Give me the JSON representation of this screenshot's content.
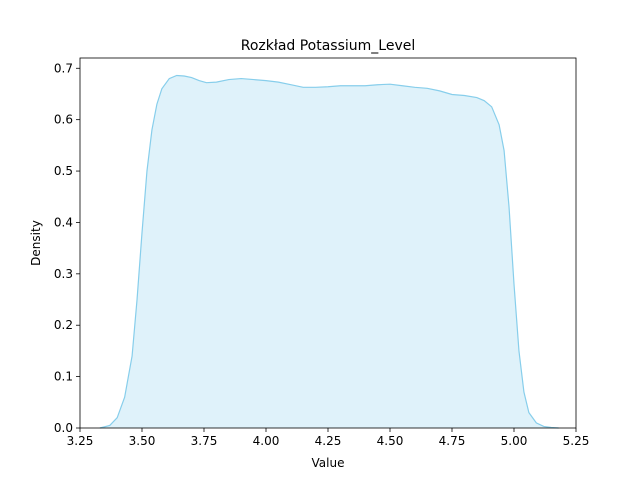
{
  "chart_data": {
    "type": "area",
    "title": "Rozkład Potassium_Level",
    "xlabel": "Value",
    "ylabel": "Density",
    "xlim": [
      3.25,
      5.25
    ],
    "ylim": [
      0.0,
      0.72
    ],
    "xticks": [
      3.25,
      3.5,
      3.75,
      4.0,
      4.25,
      4.5,
      4.75,
      5.0,
      5.25
    ],
    "xtick_labels": [
      "3.25",
      "3.50",
      "3.75",
      "4.00",
      "4.25",
      "4.50",
      "4.75",
      "5.00",
      "5.25"
    ],
    "yticks": [
      0.0,
      0.1,
      0.2,
      0.3,
      0.4,
      0.5,
      0.6,
      0.7
    ],
    "ytick_labels": [
      "0.0",
      "0.1",
      "0.2",
      "0.3",
      "0.4",
      "0.5",
      "0.6",
      "0.7"
    ],
    "grid": false,
    "line_color": "#87ceeb",
    "fill_color": "#87ceeb",
    "fill_opacity": 0.27,
    "series": [
      {
        "x": [
          3.33,
          3.37,
          3.4,
          3.43,
          3.46,
          3.48,
          3.5,
          3.52,
          3.54,
          3.56,
          3.58,
          3.61,
          3.64,
          3.67,
          3.7,
          3.73,
          3.76,
          3.8,
          3.85,
          3.9,
          3.95,
          4.0,
          4.05,
          4.1,
          4.15,
          4.2,
          4.25,
          4.3,
          4.35,
          4.4,
          4.45,
          4.5,
          4.55,
          4.6,
          4.65,
          4.7,
          4.75,
          4.8,
          4.85,
          4.88,
          4.91,
          4.94,
          4.96,
          4.98,
          5.0,
          5.02,
          5.04,
          5.06,
          5.09,
          5.12,
          5.15,
          5.18
        ],
        "y": [
          0.0,
          0.005,
          0.02,
          0.06,
          0.14,
          0.25,
          0.38,
          0.5,
          0.58,
          0.63,
          0.66,
          0.68,
          0.686,
          0.685,
          0.682,
          0.676,
          0.672,
          0.673,
          0.678,
          0.68,
          0.678,
          0.676,
          0.673,
          0.668,
          0.663,
          0.663,
          0.664,
          0.666,
          0.666,
          0.666,
          0.668,
          0.669,
          0.666,
          0.663,
          0.661,
          0.656,
          0.649,
          0.647,
          0.643,
          0.637,
          0.625,
          0.59,
          0.54,
          0.43,
          0.28,
          0.15,
          0.07,
          0.03,
          0.01,
          0.003,
          0.001,
          0.0
        ]
      }
    ]
  }
}
